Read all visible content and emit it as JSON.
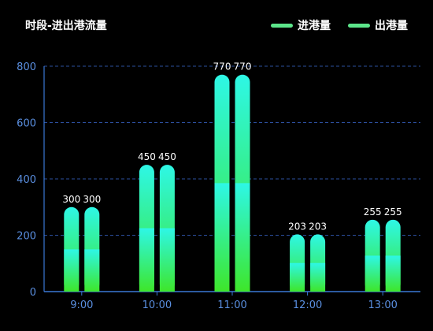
{
  "chart_data": {
    "type": "bar",
    "title": "时段-进出港流量",
    "categories": [
      "9:00",
      "10:00",
      "11:00",
      "12:00",
      "13:00"
    ],
    "series": [
      {
        "name": "进港量",
        "values": [
          300,
          450,
          770,
          203,
          255
        ]
      },
      {
        "name": "出港量",
        "values": [
          300,
          450,
          770,
          203,
          255
        ]
      }
    ],
    "ylim": [
      0,
      800
    ],
    "yticks": [
      0,
      200,
      400,
      600,
      800
    ],
    "grid": true,
    "gridStyle": "dashed",
    "legend_position": "top-right",
    "data_labels": true
  },
  "colors": {
    "background": "#000000",
    "bar_top": "#2ef7e6",
    "bar_bottom": "#3ee62a",
    "legend_swatch": "#5ce58a",
    "axis": "#3a78d6",
    "grid": "#2c4f9e",
    "tick_label": "#5a8fe0",
    "value_label": "#ffffff"
  }
}
